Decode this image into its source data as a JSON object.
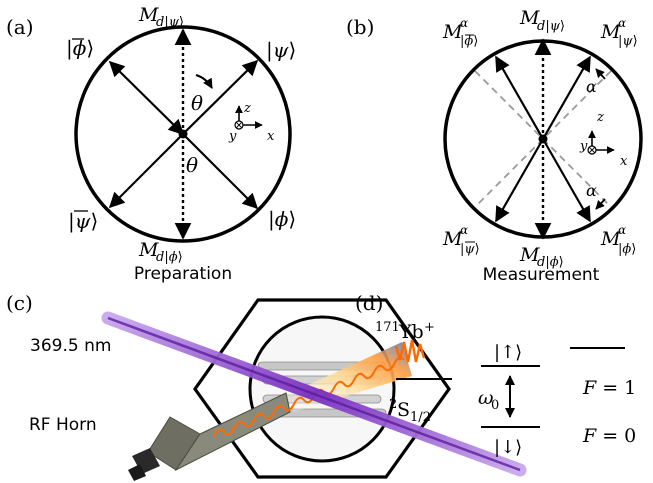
{
  "panel_a": {
    "label": "(a)",
    "caption": "Preparation",
    "state_top": "M_{d|ψ⟩}",
    "state_bottom": "M_{d|ϕ⟩}",
    "upper_left": "|ϕ̅⟩",
    "upper_right": "|ψ⟩",
    "lower_left": "|ψ̅⟩",
    "lower_right": "|ϕ⟩",
    "theta_top": "θ",
    "theta_bottom": "θ",
    "axis_z": "z",
    "axis_y": "y",
    "axis_x": "x"
  },
  "panel_b": {
    "label": "(b)",
    "caption": "Measurement",
    "alpha_upper": "α",
    "alpha_lower": "α",
    "axis_z": "z",
    "axis_y": "y",
    "axis_x": "x"
  },
  "panel_c": {
    "label": "(c)",
    "laser_label": "369.5 nm",
    "horn_label": "RF Horn"
  },
  "panel_d": {
    "label": "(d)",
    "isotope": "171",
    "ion": "Yb",
    "charge": "+",
    "up_state": "|↑⟩",
    "down_state": "|↓⟩",
    "omega": "ω",
    "omega_sub": "0",
    "F1": "F = 1",
    "F0": "F = 0",
    "term_super": "2",
    "term_main": "S",
    "term_sub": "1/2"
  },
  "colors": {
    "laser": "#8e3fcf",
    "microwave": "#ff6a00",
    "horn": "#6e6e62",
    "fluorescence_blue": "#4a80d8"
  }
}
